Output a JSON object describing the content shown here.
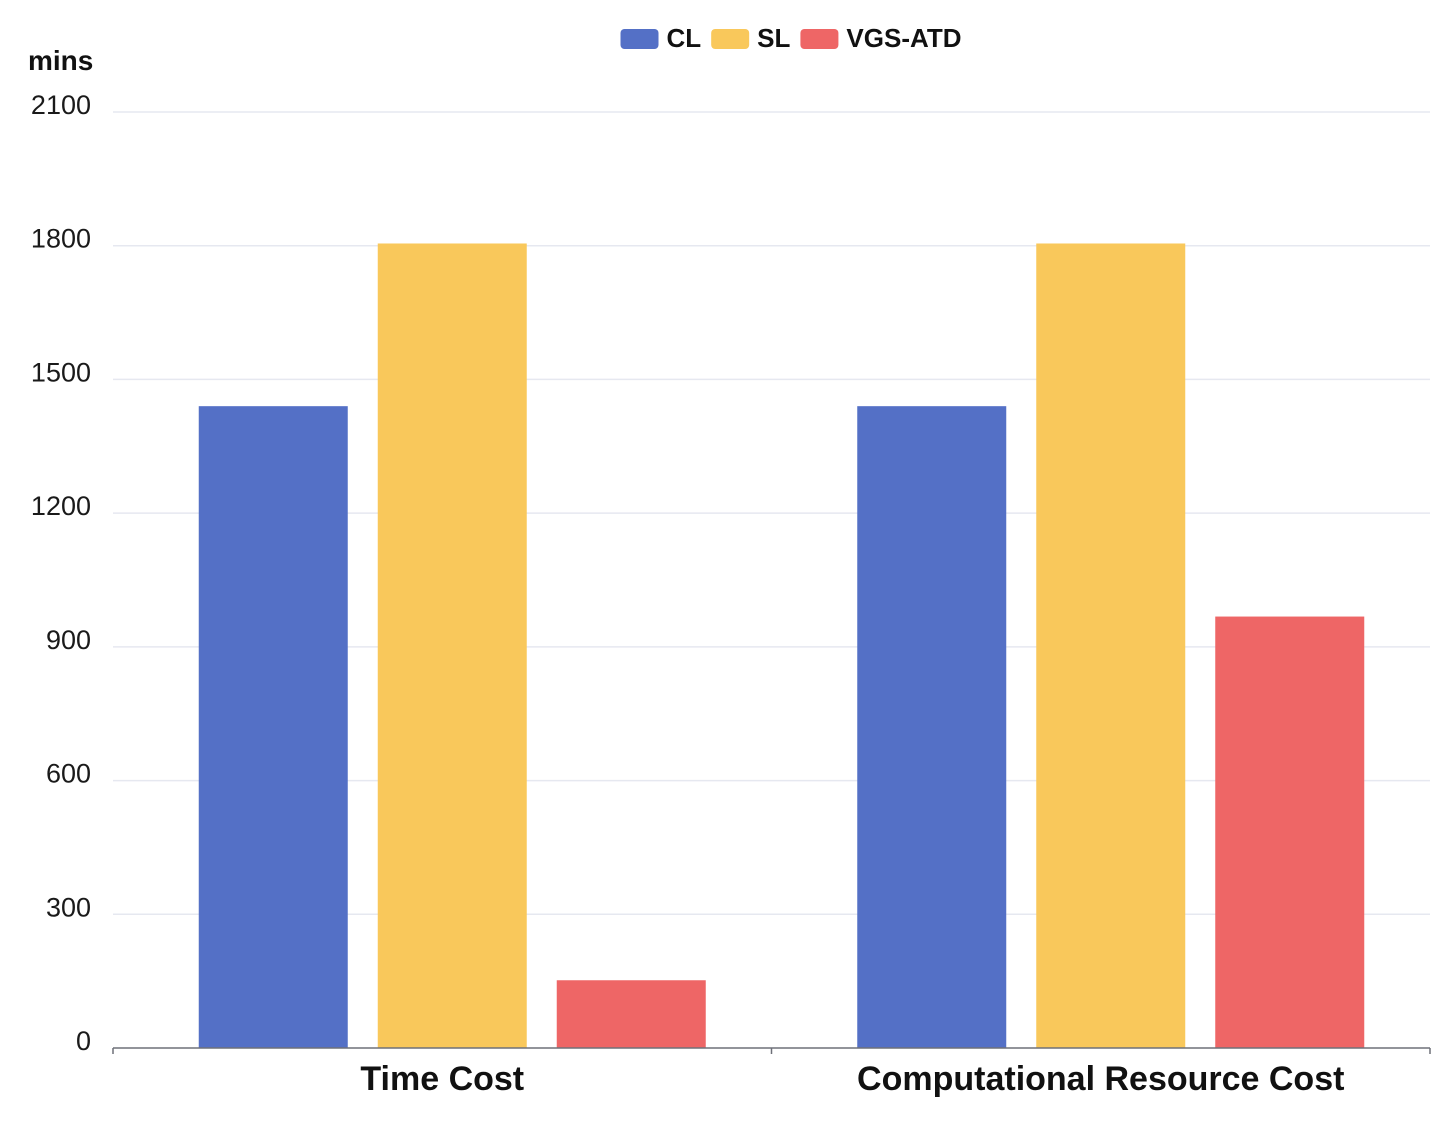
{
  "chart_data": {
    "type": "bar",
    "title": "",
    "xlabel": "",
    "ylabel": "mins",
    "ylim": [
      0,
      2100
    ],
    "yticks": [
      0,
      300,
      600,
      900,
      1200,
      1500,
      1800,
      2100
    ],
    "grid": true,
    "legend_position": "top-center",
    "categories": [
      "Time Cost",
      "Computational Resource Cost"
    ],
    "series": [
      {
        "name": "CL",
        "color": "#5470c6",
        "values": [
          1440,
          1440
        ]
      },
      {
        "name": "SL",
        "color": "#f9c85b",
        "values": [
          1805,
          1805
        ]
      },
      {
        "name": "VGS-ATD",
        "color": "#ee6666",
        "values": [
          152,
          968
        ]
      }
    ]
  }
}
